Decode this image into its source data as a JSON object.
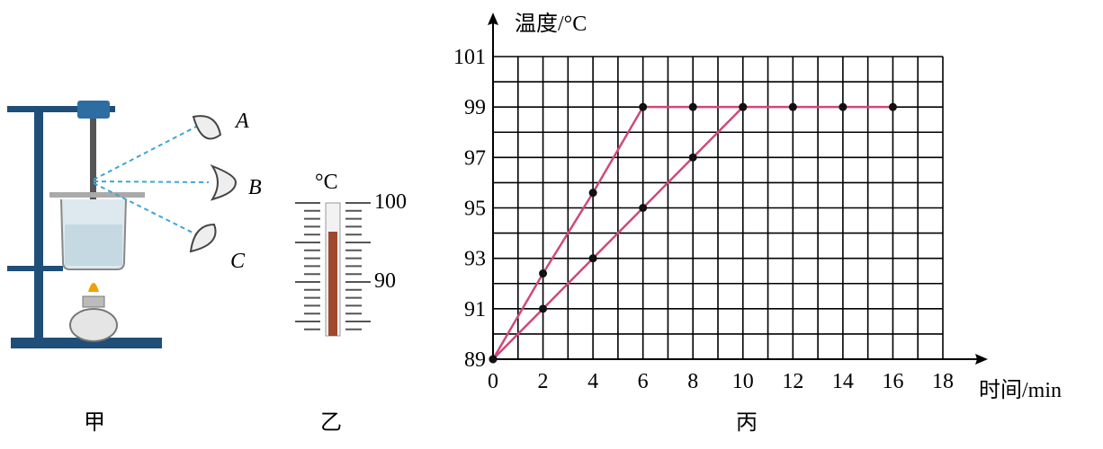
{
  "figures": {
    "apparatus": {
      "eye_labels": [
        "A",
        "B",
        "C"
      ],
      "caption": "甲"
    },
    "thermometer": {
      "unit": "°C",
      "labels": [
        "100",
        "90"
      ],
      "caption": "乙"
    },
    "graph_caption": "丙"
  },
  "chart_data": {
    "type": "line",
    "xlabel": "时间/min",
    "ylabel": "温度/°C",
    "x": [
      0,
      2,
      4,
      6,
      8,
      10,
      12,
      14,
      16
    ],
    "series": [
      {
        "color": "#cc4a7e",
        "values": [
          89,
          92.4,
          95.6,
          99,
          99,
          99,
          99,
          99,
          99
        ]
      },
      {
        "color": "#cc4a7e",
        "values": [
          89,
          91,
          93,
          95,
          97,
          99,
          null,
          null,
          null
        ]
      }
    ],
    "marker_color": "#111111",
    "xlim": [
      0,
      18
    ],
    "ylim": [
      89,
      101
    ],
    "xticks": [
      0,
      2,
      4,
      6,
      8,
      10,
      12,
      14,
      16,
      18
    ],
    "yticks": [
      89,
      91,
      93,
      95,
      97,
      99,
      101
    ],
    "grid": true,
    "minor_grid": {
      "x": 1,
      "y": 1
    }
  }
}
